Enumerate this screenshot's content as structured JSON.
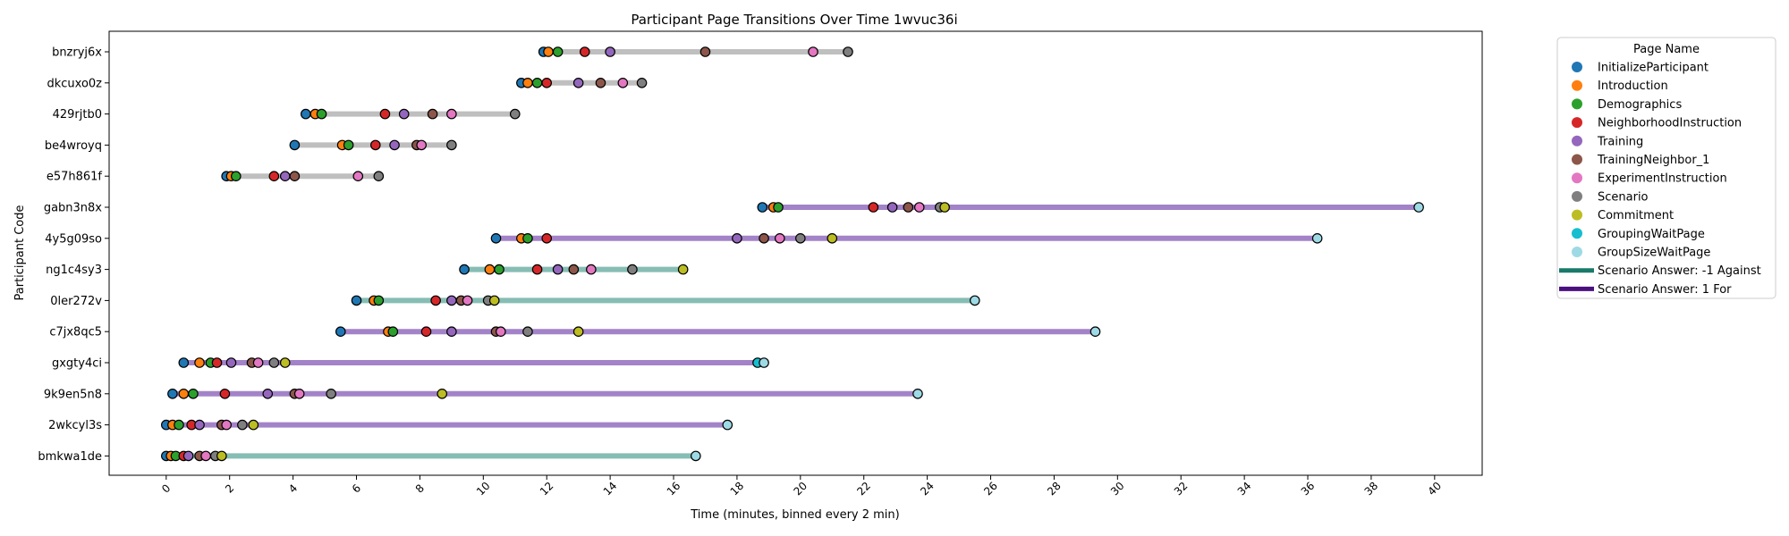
{
  "chart_data": {
    "type": "scatter",
    "title": "Participant Page Transitions Over Time 1wvuc36i",
    "xlabel": "Time (minutes, binned every 2 min)",
    "ylabel": "Participant Code",
    "xlim": [
      -1.8,
      41.5
    ],
    "xticks": [
      0,
      2,
      4,
      6,
      8,
      10,
      12,
      14,
      16,
      18,
      20,
      22,
      24,
      26,
      28,
      30,
      32,
      34,
      36,
      38,
      40
    ],
    "legend": {
      "title": "Page Name",
      "placement": "outside-right",
      "items": [
        {
          "label": "InitializeParticipant",
          "color": "#1f77b4",
          "kind": "marker"
        },
        {
          "label": "Introduction",
          "color": "#ff7f0e",
          "kind": "marker"
        },
        {
          "label": "Demographics",
          "color": "#2ca02c",
          "kind": "marker"
        },
        {
          "label": "NeighborhoodInstruction",
          "color": "#d62728",
          "kind": "marker"
        },
        {
          "label": "Training",
          "color": "#9467bd",
          "kind": "marker"
        },
        {
          "label": "TrainingNeighbor_1",
          "color": "#8c564b",
          "kind": "marker"
        },
        {
          "label": "ExperimentInstruction",
          "color": "#e377c2",
          "kind": "marker"
        },
        {
          "label": "Scenario",
          "color": "#7f7f7f",
          "kind": "marker"
        },
        {
          "label": "Commitment",
          "color": "#bcbd22",
          "kind": "marker"
        },
        {
          "label": "GroupingWaitPage",
          "color": "#17becf",
          "kind": "marker"
        },
        {
          "label": "GroupSizeWaitPage",
          "color": "#9edae5",
          "kind": "marker"
        },
        {
          "label": "Scenario Answer: -1 Against",
          "color": "#1a7a6a",
          "kind": "line"
        },
        {
          "label": "Scenario Answer: 1 For",
          "color": "#4b1080",
          "kind": "line"
        }
      ]
    },
    "line_colors": {
      "none": "#bfbfbf",
      "against": "#86bdb4",
      "for": "#a383c8"
    },
    "pages": [
      "InitializeParticipant",
      "Introduction",
      "Demographics",
      "NeighborhoodInstruction",
      "Training",
      "TrainingNeighbor_1",
      "ExperimentInstruction",
      "Scenario",
      "Commitment",
      "GroupingWaitPage",
      "GroupSizeWaitPage"
    ],
    "participants": [
      {
        "code": "bnzryj6x",
        "answer": "none",
        "events": [
          {
            "page": 0,
            "t": 11.9
          },
          {
            "page": 1,
            "t": 12.05
          },
          {
            "page": 2,
            "t": 12.35
          },
          {
            "page": 3,
            "t": 13.2
          },
          {
            "page": 4,
            "t": 14.0
          },
          {
            "page": 5,
            "t": 17.0
          },
          {
            "page": 6,
            "t": 20.4
          },
          {
            "page": 7,
            "t": 21.5
          }
        ]
      },
      {
        "code": "dkcuxo0z",
        "answer": "none",
        "events": [
          {
            "page": 0,
            "t": 11.2
          },
          {
            "page": 1,
            "t": 11.4
          },
          {
            "page": 2,
            "t": 11.7
          },
          {
            "page": 3,
            "t": 12.0
          },
          {
            "page": 4,
            "t": 13.0
          },
          {
            "page": 5,
            "t": 13.7
          },
          {
            "page": 6,
            "t": 14.4
          },
          {
            "page": 7,
            "t": 15.0
          }
        ]
      },
      {
        "code": "429rjtb0",
        "answer": "none",
        "events": [
          {
            "page": 0,
            "t": 4.4
          },
          {
            "page": 1,
            "t": 4.7
          },
          {
            "page": 2,
            "t": 4.9
          },
          {
            "page": 3,
            "t": 6.9
          },
          {
            "page": 4,
            "t": 7.5
          },
          {
            "page": 5,
            "t": 8.4
          },
          {
            "page": 6,
            "t": 9.0
          },
          {
            "page": 7,
            "t": 11.0
          }
        ]
      },
      {
        "code": "be4wroyq",
        "answer": "none",
        "events": [
          {
            "page": 0,
            "t": 4.05
          },
          {
            "page": 1,
            "t": 5.55
          },
          {
            "page": 2,
            "t": 5.75
          },
          {
            "page": 3,
            "t": 6.6
          },
          {
            "page": 4,
            "t": 7.2
          },
          {
            "page": 5,
            "t": 7.9
          },
          {
            "page": 6,
            "t": 8.05
          },
          {
            "page": 7,
            "t": 9.0
          }
        ]
      },
      {
        "code": "e57h861f",
        "answer": "none",
        "events": [
          {
            "page": 0,
            "t": 1.9
          },
          {
            "page": 1,
            "t": 2.05
          },
          {
            "page": 2,
            "t": 2.2
          },
          {
            "page": 3,
            "t": 3.4
          },
          {
            "page": 4,
            "t": 3.75
          },
          {
            "page": 5,
            "t": 4.05
          },
          {
            "page": 6,
            "t": 6.05
          },
          {
            "page": 7,
            "t": 6.7
          }
        ]
      },
      {
        "code": "gabn3n8x",
        "answer": "for",
        "events": [
          {
            "page": 0,
            "t": 18.8
          },
          {
            "page": 1,
            "t": 19.15
          },
          {
            "page": 2,
            "t": 19.3
          },
          {
            "page": 3,
            "t": 22.3
          },
          {
            "page": 4,
            "t": 22.9
          },
          {
            "page": 5,
            "t": 23.4
          },
          {
            "page": 6,
            "t": 23.75
          },
          {
            "page": 7,
            "t": 24.4
          },
          {
            "page": 8,
            "t": 24.55
          },
          {
            "page": 10,
            "t": 39.5
          }
        ]
      },
      {
        "code": "4y5g09so",
        "answer": "for",
        "events": [
          {
            "page": 0,
            "t": 10.4
          },
          {
            "page": 1,
            "t": 11.2
          },
          {
            "page": 2,
            "t": 11.4
          },
          {
            "page": 3,
            "t": 12.0
          },
          {
            "page": 4,
            "t": 18.0
          },
          {
            "page": 5,
            "t": 18.85
          },
          {
            "page": 6,
            "t": 19.35
          },
          {
            "page": 7,
            "t": 20.0
          },
          {
            "page": 8,
            "t": 21.0
          },
          {
            "page": 10,
            "t": 36.3
          }
        ]
      },
      {
        "code": "ng1c4sy3",
        "answer": "against",
        "events": [
          {
            "page": 0,
            "t": 9.4
          },
          {
            "page": 1,
            "t": 10.2
          },
          {
            "page": 2,
            "t": 10.5
          },
          {
            "page": 3,
            "t": 11.7
          },
          {
            "page": 4,
            "t": 12.35
          },
          {
            "page": 5,
            "t": 12.85
          },
          {
            "page": 6,
            "t": 13.4
          },
          {
            "page": 7,
            "t": 14.7
          },
          {
            "page": 8,
            "t": 16.3
          }
        ]
      },
      {
        "code": "0ler272v",
        "answer": "against",
        "events": [
          {
            "page": 0,
            "t": 6.0
          },
          {
            "page": 1,
            "t": 6.55
          },
          {
            "page": 2,
            "t": 6.7
          },
          {
            "page": 3,
            "t": 8.5
          },
          {
            "page": 4,
            "t": 9.0
          },
          {
            "page": 5,
            "t": 9.3
          },
          {
            "page": 6,
            "t": 9.5
          },
          {
            "page": 7,
            "t": 10.15
          },
          {
            "page": 8,
            "t": 10.35
          },
          {
            "page": 10,
            "t": 25.5
          }
        ]
      },
      {
        "code": "c7jx8qc5",
        "answer": "for",
        "events": [
          {
            "page": 0,
            "t": 5.5
          },
          {
            "page": 1,
            "t": 7.0
          },
          {
            "page": 2,
            "t": 7.15
          },
          {
            "page": 3,
            "t": 8.2
          },
          {
            "page": 4,
            "t": 9.0
          },
          {
            "page": 5,
            "t": 10.4
          },
          {
            "page": 6,
            "t": 10.55
          },
          {
            "page": 7,
            "t": 11.4
          },
          {
            "page": 8,
            "t": 13.0
          },
          {
            "page": 10,
            "t": 29.3
          }
        ]
      },
      {
        "code": "gxgty4ci",
        "answer": "for",
        "events": [
          {
            "page": 0,
            "t": 0.55
          },
          {
            "page": 1,
            "t": 1.05
          },
          {
            "page": 2,
            "t": 1.4
          },
          {
            "page": 3,
            "t": 1.6
          },
          {
            "page": 4,
            "t": 2.05
          },
          {
            "page": 5,
            "t": 2.7
          },
          {
            "page": 6,
            "t": 2.9
          },
          {
            "page": 7,
            "t": 3.4
          },
          {
            "page": 8,
            "t": 3.75
          },
          {
            "page": 9,
            "t": 18.65
          },
          {
            "page": 10,
            "t": 18.85
          }
        ]
      },
      {
        "code": "9k9en5n8",
        "answer": "for",
        "events": [
          {
            "page": 0,
            "t": 0.2
          },
          {
            "page": 1,
            "t": 0.55
          },
          {
            "page": 2,
            "t": 0.85
          },
          {
            "page": 3,
            "t": 1.85
          },
          {
            "page": 4,
            "t": 3.2
          },
          {
            "page": 5,
            "t": 4.05
          },
          {
            "page": 6,
            "t": 4.2
          },
          {
            "page": 7,
            "t": 5.2
          },
          {
            "page": 8,
            "t": 8.7
          },
          {
            "page": 10,
            "t": 23.7
          }
        ]
      },
      {
        "code": "2wkcyl3s",
        "answer": "for",
        "events": [
          {
            "page": 0,
            "t": 0.0
          },
          {
            "page": 1,
            "t": 0.2
          },
          {
            "page": 2,
            "t": 0.4
          },
          {
            "page": 3,
            "t": 0.8
          },
          {
            "page": 4,
            "t": 1.05
          },
          {
            "page": 5,
            "t": 1.75
          },
          {
            "page": 6,
            "t": 1.9
          },
          {
            "page": 7,
            "t": 2.4
          },
          {
            "page": 8,
            "t": 2.75
          },
          {
            "page": 10,
            "t": 17.7
          }
        ]
      },
      {
        "code": "bmkwa1de",
        "answer": "against",
        "events": [
          {
            "page": 0,
            "t": 0.0
          },
          {
            "page": 1,
            "t": 0.15
          },
          {
            "page": 2,
            "t": 0.3
          },
          {
            "page": 3,
            "t": 0.55
          },
          {
            "page": 4,
            "t": 0.7
          },
          {
            "page": 5,
            "t": 1.05
          },
          {
            "page": 6,
            "t": 1.25
          },
          {
            "page": 7,
            "t": 1.55
          },
          {
            "page": 8,
            "t": 1.75
          },
          {
            "page": 10,
            "t": 16.7
          }
        ]
      }
    ]
  }
}
